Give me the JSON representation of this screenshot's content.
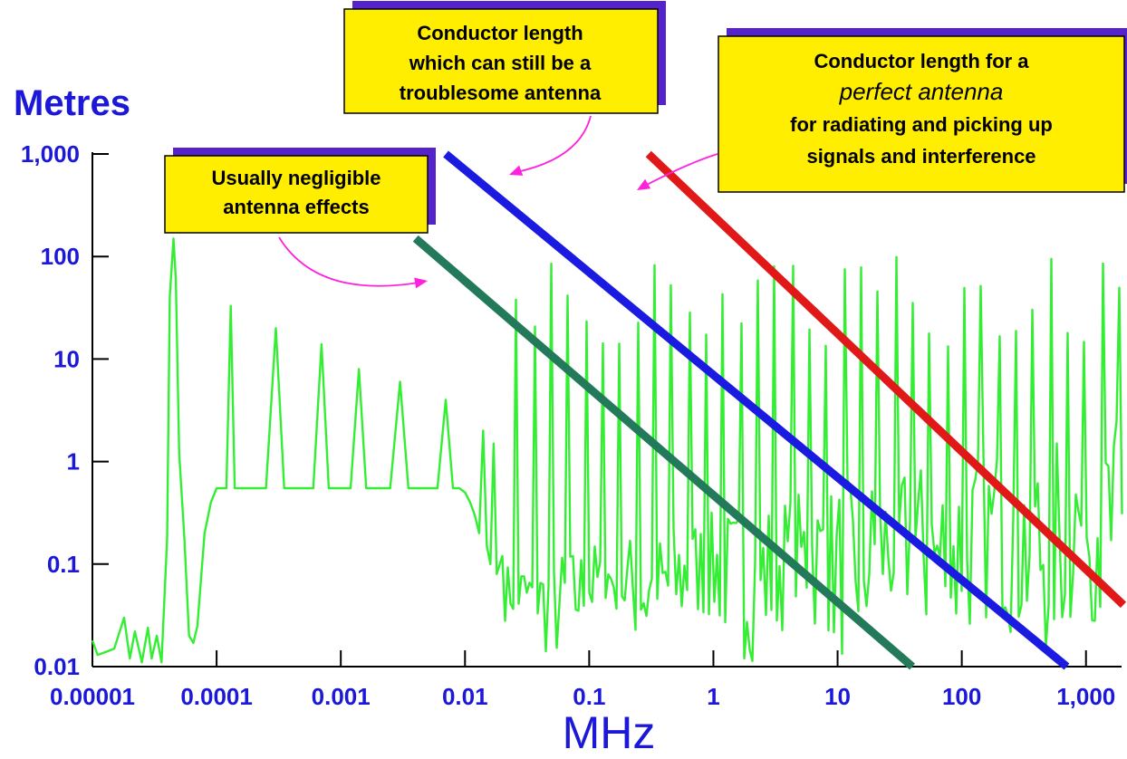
{
  "chart_data": {
    "type": "line",
    "ylabel": "Metres",
    "xlabel": "MHz",
    "x_scale": "log",
    "y_scale": "log",
    "xlim": [
      1e-05,
      2000
    ],
    "ylim": [
      0.01,
      1000
    ],
    "x_ticks": [
      {
        "value": 1e-05,
        "label": "0.00001"
      },
      {
        "value": 0.0001,
        "label": "0.0001"
      },
      {
        "value": 0.001,
        "label": "0.001"
      },
      {
        "value": 0.01,
        "label": "0.01"
      },
      {
        "value": 0.1,
        "label": "0.1"
      },
      {
        "value": 1,
        "label": "1"
      },
      {
        "value": 10,
        "label": "10"
      },
      {
        "value": 100,
        "label": "100"
      },
      {
        "value": 1000,
        "label": "1,000"
      }
    ],
    "y_ticks": [
      {
        "value": 0.01,
        "label": "0.01"
      },
      {
        "value": 0.1,
        "label": "0.1"
      },
      {
        "value": 1,
        "label": "1"
      },
      {
        "value": 10,
        "label": "10"
      },
      {
        "value": 100,
        "label": "100"
      },
      {
        "value": 1000,
        "label": "1,000"
      }
    ],
    "grid": false,
    "legend": "none",
    "series": [
      {
        "color": "#e01818",
        "x": [
          0.3,
          2000
        ],
        "y": [
          1000,
          0.04
        ]
      },
      {
        "color": "#1a1ae0",
        "x": [
          0.007,
          700
        ],
        "y": [
          1000,
          0.01
        ]
      },
      {
        "color": "#237a5a",
        "x": [
          0.004,
          40
        ],
        "y": [
          150,
          0.01
        ]
      },
      {
        "color": "#33ee33",
        "x": [
          1e-05,
          1.1e-05,
          1.3e-05,
          1.5e-05,
          1.8e-05,
          2e-05,
          2.2e-05,
          2.5e-05,
          2.8e-05,
          3e-05,
          3.3e-05,
          3.6e-05,
          4e-05,
          4.2e-05,
          4.5e-05,
          4.7e-05,
          5e-05,
          5.5e-05,
          6e-05,
          6.5e-05,
          7e-05,
          8e-05,
          9e-05,
          0.0001,
          0.00011,
          0.00012,
          0.00013,
          0.00014,
          0.00016,
          0.00018,
          0.0002,
          0.00025,
          0.0003,
          0.00035,
          0.0004,
          0.0005,
          0.0006,
          0.0007,
          0.0008,
          0.0009,
          0.001,
          0.0012,
          0.0014,
          0.0016,
          0.0018,
          0.002,
          0.0025,
          0.003,
          0.0035,
          0.004,
          0.005,
          0.006,
          0.007,
          0.008,
          0.009,
          0.01,
          0.011,
          0.012,
          0.013,
          0.014,
          0.015,
          0.016,
          0.017,
          0.018,
          0.02
        ],
        "y": [
          0.018,
          0.013,
          0.014,
          0.015,
          0.03,
          0.012,
          0.022,
          0.011,
          0.024,
          0.012,
          0.02,
          0.011,
          0.18,
          40,
          150,
          60,
          1.2,
          0.18,
          0.02,
          0.017,
          0.025,
          0.2,
          0.4,
          0.55,
          0.55,
          0.55,
          33,
          0.55,
          0.55,
          0.55,
          0.55,
          0.55,
          20,
          0.55,
          0.55,
          0.55,
          0.55,
          14,
          0.55,
          0.55,
          0.55,
          0.55,
          8,
          0.55,
          0.55,
          0.55,
          0.55,
          6,
          0.55,
          0.55,
          0.55,
          0.55,
          4,
          0.55,
          0.55,
          0.5,
          0.4,
          0.3,
          0.2,
          2,
          0.15,
          0.1,
          1.5,
          0.08,
          0.12
        ]
      }
    ],
    "annotations": [
      {
        "lines": [
          "Usually negligible",
          "antenna effects"
        ],
        "points_to": "green"
      },
      {
        "lines": [
          "Conductor length",
          "which can still be a",
          "troublesome antenna"
        ],
        "points_to": "blue"
      },
      {
        "lines": [
          "Conductor length for a",
          "perfect antenna",
          "for radiating and picking up",
          "signals and interference"
        ],
        "italic_line": 1,
        "points_to": "red"
      }
    ]
  }
}
